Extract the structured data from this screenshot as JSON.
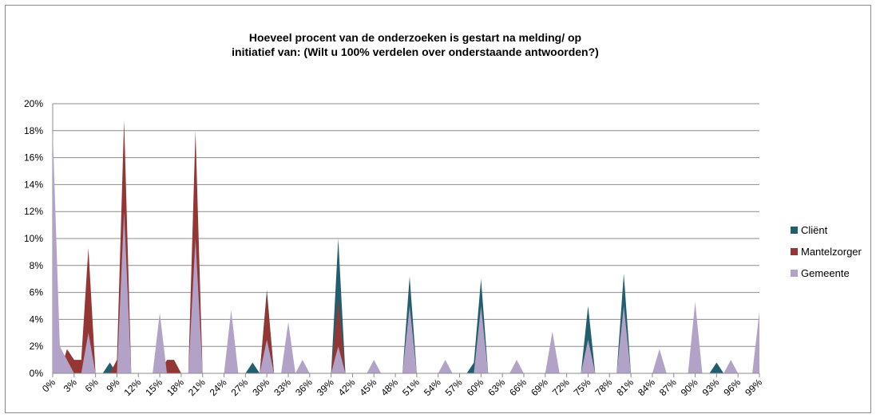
{
  "chart_data": {
    "type": "area",
    "title": [
      "Hoeveel procent van de onderzoeken is gestart na melding/  op",
      "initiatief  van: (Wilt u 100% verdelen over onderstaande antwoorden?)"
    ],
    "categories": [
      "0%",
      null,
      null,
      "3%",
      null,
      null,
      "6%",
      null,
      null,
      "9%",
      null,
      null,
      "12%",
      null,
      null,
      "15%",
      null,
      null,
      "18%",
      null,
      null,
      "21%",
      null,
      null,
      "24%",
      null,
      null,
      "27%",
      null,
      null,
      "30%",
      null,
      null,
      "33%",
      null,
      null,
      "36%",
      null,
      null,
      "39%",
      null,
      null,
      "42%",
      null,
      null,
      "45%",
      null,
      null,
      "48%",
      null,
      null,
      "51%",
      null,
      null,
      "54%",
      null,
      null,
      "57%",
      null,
      null,
      "60%",
      null,
      null,
      "63%",
      null,
      null,
      "66%",
      null,
      null,
      "69%",
      null,
      null,
      "72%",
      null,
      null,
      "75%",
      null,
      null,
      "78%",
      null,
      null,
      "81%",
      null,
      null,
      "84%",
      null,
      null,
      "87%",
      null,
      null,
      "90%",
      null,
      null,
      "93%",
      null,
      null,
      "96%",
      null,
      null,
      "99%"
    ],
    "series": [
      {
        "name": "Cliënt",
        "color": "#215f6e",
        "values": [
          0,
          0,
          0,
          0,
          0,
          0,
          0,
          0,
          0.8,
          0,
          0,
          0,
          0,
          0,
          0,
          0,
          0,
          0,
          0,
          0,
          0,
          0,
          0,
          0,
          0,
          0,
          0,
          0,
          0.8,
          0,
          6.2,
          0,
          0,
          0,
          0,
          0,
          0,
          0,
          0,
          0,
          10,
          0,
          0,
          0,
          0,
          0,
          0,
          0,
          0,
          0,
          7.2,
          0,
          0,
          0,
          0,
          0,
          0,
          0,
          0,
          0.8,
          7,
          0,
          0,
          0,
          0,
          0,
          0,
          0,
          0,
          0,
          0,
          0,
          0,
          0,
          0,
          5,
          0,
          0,
          0,
          0,
          7.4,
          0,
          0,
          0,
          0,
          0,
          0,
          0,
          0,
          0,
          0,
          0,
          0,
          0.8,
          0,
          0,
          0,
          0,
          0,
          0
        ]
      },
      {
        "name": "Mantelzorger",
        "color": "#943634",
        "values": [
          0,
          0,
          1.8,
          1,
          1,
          9.3,
          0,
          0,
          0,
          1,
          18.8,
          0,
          0,
          0,
          0,
          0,
          1,
          1,
          0,
          0,
          18,
          0,
          0,
          0,
          0,
          0,
          0,
          0,
          0,
          0,
          6,
          0,
          0,
          0,
          0,
          0,
          0,
          0,
          0,
          0,
          5.5,
          0,
          0,
          0,
          0,
          0,
          0,
          0,
          0,
          0,
          0,
          0,
          0,
          0,
          0,
          0,
          0,
          0,
          0,
          0,
          0,
          0,
          0,
          0,
          0,
          0,
          0,
          0,
          0,
          0,
          0,
          0,
          0,
          0,
          0,
          0,
          0,
          0,
          0,
          0,
          0,
          0,
          0,
          0,
          0,
          0,
          0,
          0,
          0,
          0,
          0,
          0,
          0,
          0,
          0,
          0,
          0,
          0,
          0,
          0
        ]
      },
      {
        "name": "Gemeente",
        "color": "#b3a2c7",
        "values": [
          18,
          2,
          1,
          0,
          0,
          3,
          0,
          0,
          0,
          0,
          12,
          0,
          0,
          0,
          0,
          4.5,
          0,
          0,
          0,
          0,
          10,
          0,
          0,
          0,
          0,
          4.7,
          0,
          0,
          0,
          0,
          2.5,
          0,
          0,
          3.8,
          0,
          1,
          0,
          0,
          0,
          0,
          2,
          0,
          0,
          0,
          0,
          1,
          0,
          0,
          0,
          0,
          5,
          0,
          0,
          0,
          0,
          1,
          0,
          0,
          0,
          0,
          5,
          0,
          0,
          0,
          0,
          1,
          0,
          0,
          0,
          0,
          3.1,
          0,
          0,
          0,
          0,
          2.5,
          0,
          0,
          0,
          0,
          5,
          0,
          0,
          0,
          0,
          1.8,
          0,
          0,
          0,
          0,
          5.3,
          0,
          0,
          0,
          0,
          1,
          0,
          0,
          0,
          4.6
        ]
      }
    ],
    "ylim": [
      0,
      20
    ],
    "yticks": [
      {
        "value": 0,
        "label": "0%"
      },
      {
        "value": 2,
        "label": "2%"
      },
      {
        "value": 4,
        "label": "4%"
      },
      {
        "value": 6,
        "label": "6%"
      },
      {
        "value": 8,
        "label": "8%"
      },
      {
        "value": 10,
        "label": "10%"
      },
      {
        "value": 12,
        "label": "12%"
      },
      {
        "value": 14,
        "label": "14%"
      },
      {
        "value": 16,
        "label": "16%"
      },
      {
        "value": 18,
        "label": "18%"
      },
      {
        "value": 20,
        "label": "20%"
      }
    ],
    "grid": true,
    "legend": "right"
  }
}
